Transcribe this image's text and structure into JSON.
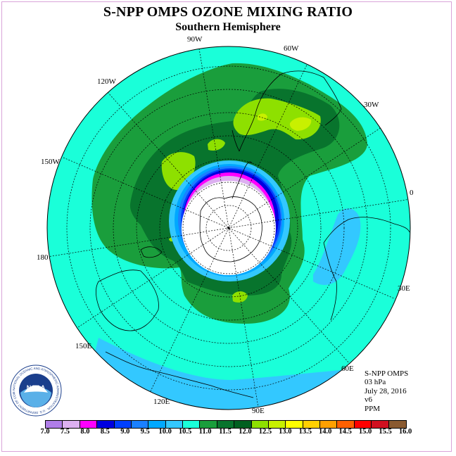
{
  "title": "S-NPP OMPS OZONE MIXING RATIO",
  "subtitle": "Southern Hemisphere",
  "longitude_labels": [
    "90W",
    "60W",
    "120W",
    "30W",
    "150W",
    "0",
    "180",
    "30E",
    "150E",
    "60E",
    "120E",
    "90E"
  ],
  "info": {
    "instrument": "S-NPP OMPS",
    "level": "03 hPa",
    "date": "July 28, 2016",
    "version": "v6",
    "units": "PPM"
  },
  "logo": {
    "text": "NOAA",
    "ring_text": "NATIONAL OCEANIC AND ATMOSPHERIC ADMINISTRATION · U.S. DEPARTMENT OF COMMERCE"
  },
  "colorbar": {
    "ticks": [
      "7.0",
      "7.5",
      "8.0",
      "8.5",
      "9.0",
      "9.5",
      "10.0",
      "10.5",
      "11.0",
      "11.5",
      "12.0",
      "12.5",
      "13.0",
      "13.5",
      "14.0",
      "14.5",
      "15.0",
      "15.5",
      "16.0"
    ],
    "colors": [
      "#b07ee8",
      "#dcb0f0",
      "#ff00ff",
      "#0000e0",
      "#0040ff",
      "#1a80ff",
      "#00a8ff",
      "#33c8ff",
      "#1affd9",
      "#1a9e3c",
      "#08742d",
      "#006020",
      "#8ee000",
      "#c8f000",
      "#ffff00",
      "#ffd000",
      "#ffa000",
      "#ff6000",
      "#ff0000",
      "#d01020",
      "#8a5a30"
    ]
  },
  "colors": {
    "ocean_level_11": "#1affd9",
    "light_blue_10_5": "#33c8ff",
    "green_11_5": "#1a9e3c",
    "dark_green_12": "#08742d",
    "yellow_green_12_5": "#8ee000",
    "lime_13": "#c8f000"
  }
}
